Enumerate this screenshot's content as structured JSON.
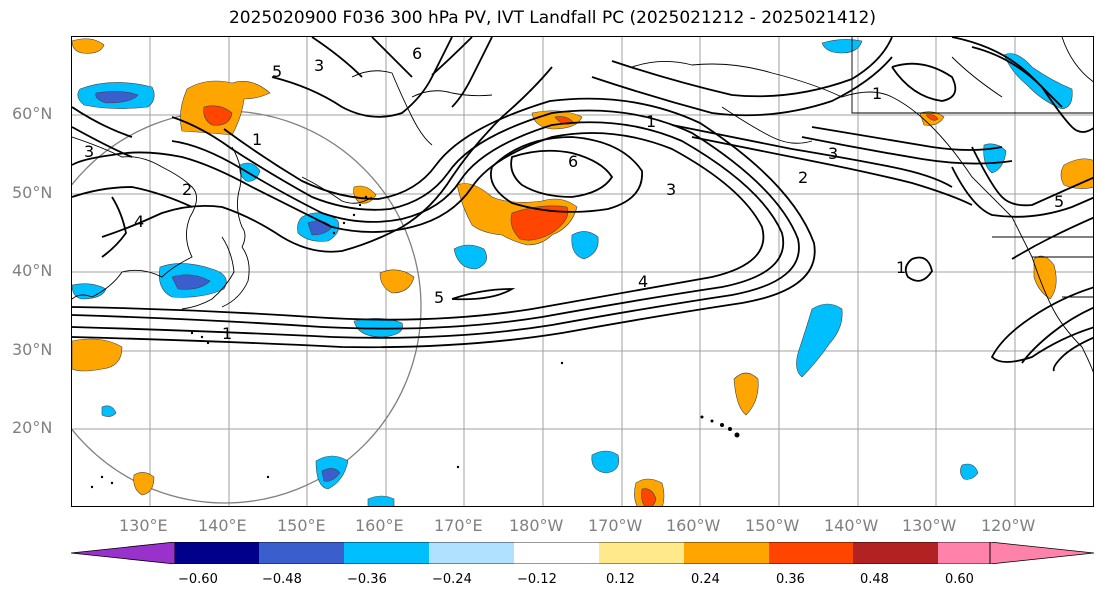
{
  "title": "2025020900 F036 300 hPa PV, IVT Landfall PC (2025021212 - 2025021412)",
  "lat_labels": [
    "60°N",
    "50°N",
    "40°N",
    "30°N",
    "20°N"
  ],
  "lon_labels": [
    "130°E",
    "140°E",
    "150°E",
    "160°E",
    "170°E",
    "180°W",
    "170°W",
    "160°W",
    "150°W",
    "140°W",
    "130°W",
    "120°W"
  ],
  "colorbar": {
    "ticks": [
      "−0.60",
      "−0.48",
      "−0.36",
      "−0.24",
      "−0.12",
      "0.12",
      "0.24",
      "0.36",
      "0.48",
      "0.60"
    ],
    "colors": [
      "#9932cc",
      "#00008b",
      "#3a5fcd",
      "#00bfff",
      "#b0e2ff",
      "#ffffff",
      "#ffe98a",
      "#ffa500",
      "#ff4500",
      "#b22222",
      "#ff82ab"
    ]
  },
  "contour_labels": [
    "1",
    "2",
    "3",
    "4",
    "5",
    "6"
  ],
  "contour_label_placements": [
    "1",
    "1",
    "1",
    "2",
    "2",
    "3",
    "3",
    "3",
    "4",
    "4",
    "5",
    "5",
    "6",
    "6",
    "1",
    "1",
    "3",
    "5"
  ]
}
